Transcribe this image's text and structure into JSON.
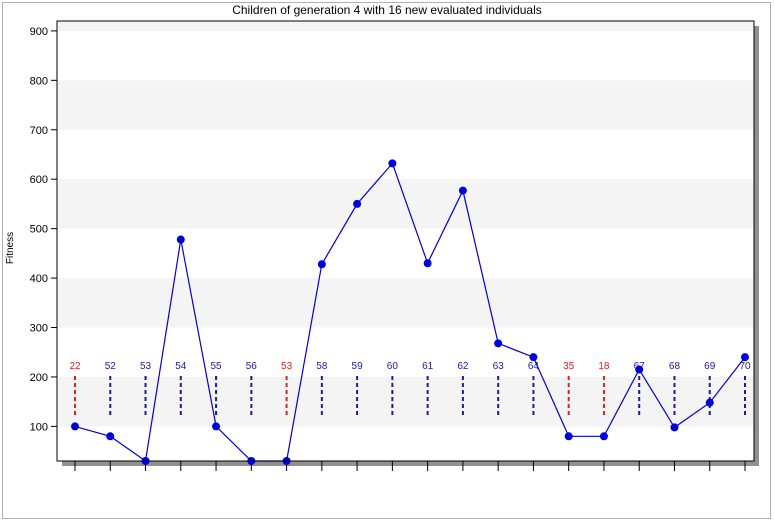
{
  "chart_data": {
    "type": "line",
    "title": "Children of generation 4 with 16 new evaluated individuals",
    "xlabel": "",
    "ylabel": "Fitness",
    "ylim": [
      30,
      920
    ],
    "yticks": [
      100,
      200,
      300,
      400,
      500,
      600,
      700,
      800,
      900
    ],
    "grid": "horizontal alternating bands",
    "series": [
      {
        "color": "#0000dd",
        "values": [
          100,
          80,
          30,
          478,
          100,
          30,
          30,
          428,
          550,
          632,
          430,
          577,
          268,
          240,
          80,
          80,
          215,
          98,
          148,
          240
        ]
      }
    ],
    "point_labels": [
      "22",
      "52",
      "53",
      "54",
      "55",
      "56",
      "53",
      "58",
      "59",
      "60",
      "61",
      "62",
      "63",
      "64",
      "35",
      "18",
      "67",
      "68",
      "69",
      "70"
    ],
    "label_status": [
      "old",
      "new",
      "new",
      "new",
      "new",
      "new",
      "old",
      "new",
      "new",
      "new",
      "new",
      "new",
      "new",
      "new",
      "old",
      "old",
      "new",
      "new",
      "new",
      "new"
    ],
    "colors": {
      "new": "#1a1aa8",
      "old": "#dd2222",
      "line": "#0000dd",
      "band": "#f4f4f4"
    }
  }
}
